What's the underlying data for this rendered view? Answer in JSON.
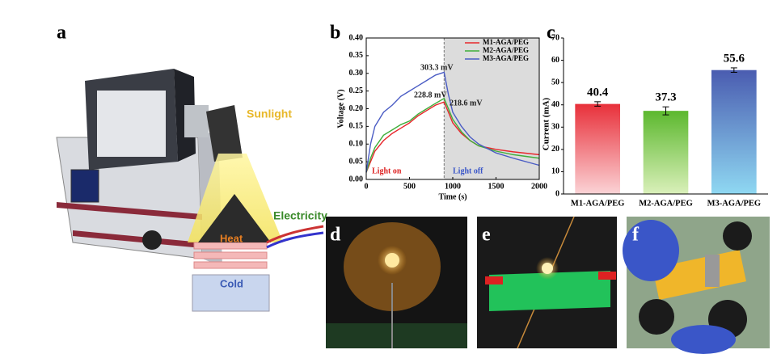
{
  "panel_labels": [
    "a",
    "b",
    "c",
    "d",
    "e",
    "f"
  ],
  "illustration": {
    "labels": [
      "Sunlight",
      "Heat",
      "Cold",
      "Electricity"
    ]
  },
  "chart_data": [
    {
      "type": "line",
      "x_label": "Time (s)",
      "y_label": "Voltage (V)",
      "x": [
        0,
        50,
        100,
        200,
        300,
        400,
        500,
        600,
        700,
        800,
        900,
        950,
        1000,
        1100,
        1200,
        1300,
        1500,
        1700,
        2000
      ],
      "series": [
        {
          "name": "M1-AGA/PEG",
          "color": "#e8262c",
          "values": [
            0.02,
            0.05,
            0.08,
            0.11,
            0.13,
            0.145,
            0.16,
            0.18,
            0.195,
            0.21,
            0.219,
            0.19,
            0.16,
            0.13,
            0.11,
            0.095,
            0.085,
            0.078,
            0.07
          ]
        },
        {
          "name": "M2-AGA/PEG",
          "color": "#3fae3a",
          "values": [
            0.02,
            0.06,
            0.09,
            0.125,
            0.14,
            0.155,
            0.165,
            0.185,
            0.2,
            0.215,
            0.229,
            0.2,
            0.17,
            0.135,
            0.11,
            0.095,
            0.08,
            0.07,
            0.06
          ]
        },
        {
          "name": "M3-AGA/PEG",
          "color": "#4a5cc4",
          "values": [
            0.02,
            0.1,
            0.15,
            0.19,
            0.21,
            0.235,
            0.25,
            0.265,
            0.28,
            0.295,
            0.303,
            0.24,
            0.19,
            0.15,
            0.12,
            0.1,
            0.075,
            0.06,
            0.04
          ]
        }
      ],
      "annotations": [
        "303.3 mV",
        "228.8 mV",
        "218.6 mV",
        "Light on",
        "Light off"
      ],
      "shaded_x": [
        900,
        2000
      ],
      "xlim": [
        0,
        2000
      ],
      "xticks": [
        0,
        500,
        1000,
        1500,
        2000
      ],
      "ylim": [
        0,
        0.4
      ],
      "yticks": [
        {
          "value": 0,
          "label": "0.00"
        },
        0.05,
        {
          "value": 0.1,
          "label": "0.10"
        },
        0.15,
        {
          "value": 0.2,
          "label": "0.20"
        },
        0.25,
        {
          "value": 0.3,
          "label": "0.30"
        },
        0.35,
        {
          "value": 0.4,
          "label": "0.40"
        }
      ],
      "legend": "upper right"
    },
    {
      "type": "bar",
      "y_label": "Current (mA)",
      "categories": [
        "M1-AGA/PEG",
        "M2-AGA/PEG",
        "M3-AGA/PEG"
      ],
      "values": [
        40.4,
        37.3,
        55.6
      ],
      "errors": [
        1.0,
        1.8,
        1.0
      ],
      "colors": [
        "#e8303a",
        "#5cb82e",
        "#4a5cb0"
      ],
      "gradient_to": [
        "#fbd3d6",
        "#daf0ba",
        "#8fd8f2"
      ],
      "ylim": [
        0,
        70
      ],
      "yticks": [
        0,
        10,
        20,
        30,
        40,
        50,
        60,
        70
      ]
    }
  ]
}
